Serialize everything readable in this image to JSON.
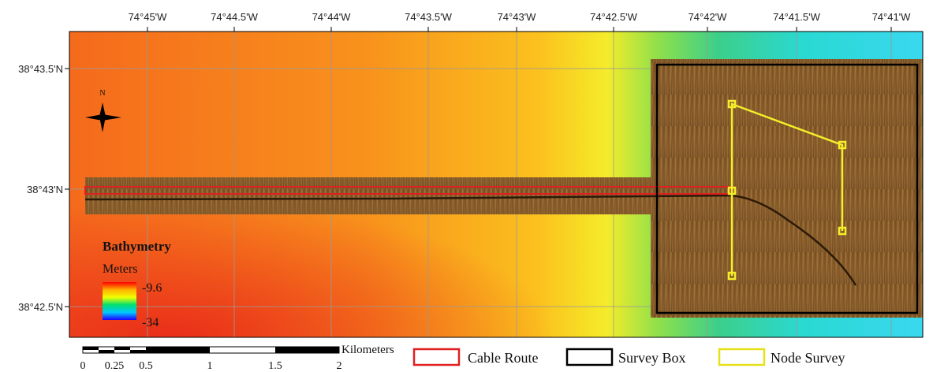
{
  "map": {
    "longitude_labels": [
      "74°45'W",
      "74°44.5'W",
      "74°44'W",
      "74°43.5'W",
      "74°43'W",
      "74°42.5'W",
      "74°42'W",
      "74°41.5'W",
      "74°41'W"
    ],
    "latitude_labels": [
      "38°43.5'N",
      "38°43'N",
      "38°42.5'N"
    ],
    "north_label": "N",
    "bathymetry": {
      "title": "Bathymetry",
      "units": "Meters",
      "max_label": "-9.6",
      "min_label": "-34"
    },
    "scale_bar": {
      "unit": "Kilometers",
      "labels": [
        "0",
        "0.25",
        "0.5",
        "1",
        "1.5",
        "2"
      ]
    },
    "legend": [
      "Cable Route",
      "Survey Box",
      "Node Survey"
    ]
  }
}
